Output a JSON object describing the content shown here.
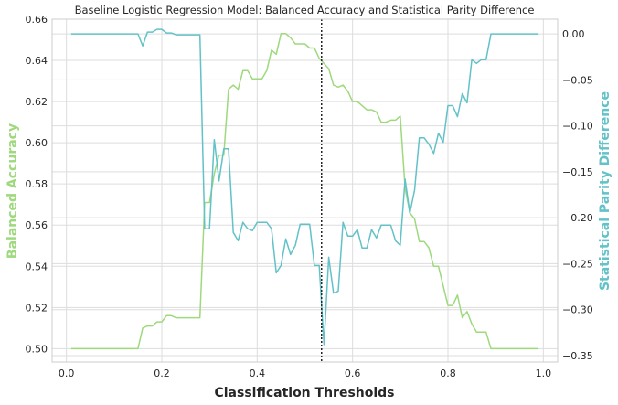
{
  "chart_data": {
    "type": "line",
    "title": "Baseline Logistic Regression Model: Balanced Accuracy and Statistical Parity Difference",
    "xlabel": "Classification Thresholds",
    "ylabel_left": "Balanced Accuracy",
    "ylabel_right": "Statistical Parity Difference",
    "xlim": [
      -0.03,
      1.03
    ],
    "ylim_left": [
      0.4935,
      0.66
    ],
    "ylim_right": [
      -0.357,
      0.016
    ],
    "xticks": [
      "0.0",
      "0.2",
      "0.4",
      "0.6",
      "0.8",
      "1.0"
    ],
    "yticks_left": [
      "0.50",
      "0.52",
      "0.54",
      "0.56",
      "0.58",
      "0.60",
      "0.62",
      "0.64",
      "0.66"
    ],
    "yticks_right": [
      "0.00",
      "−0.05",
      "−0.10",
      "−0.15",
      "−0.20",
      "−0.25",
      "−0.30",
      "−0.35"
    ],
    "grid": true,
    "colors": {
      "balanced_accuracy": "#9ed97e",
      "parity": "#62c2c8",
      "threshold": "#262626"
    },
    "vline_x": 0.535,
    "series": [
      {
        "axis": "left",
        "points": [
          [
            0.01,
            0.5
          ],
          [
            0.05,
            0.5
          ],
          [
            0.1,
            0.5
          ],
          [
            0.15,
            0.5
          ],
          [
            0.16,
            0.51
          ],
          [
            0.17,
            0.511
          ],
          [
            0.18,
            0.511
          ],
          [
            0.19,
            0.513
          ],
          [
            0.2,
            0.513
          ],
          [
            0.21,
            0.516
          ],
          [
            0.22,
            0.516
          ],
          [
            0.23,
            0.515
          ],
          [
            0.25,
            0.515
          ],
          [
            0.28,
            0.515
          ],
          [
            0.29,
            0.571
          ],
          [
            0.3,
            0.571
          ],
          [
            0.31,
            0.585
          ],
          [
            0.32,
            0.594
          ],
          [
            0.33,
            0.594
          ],
          [
            0.34,
            0.626
          ],
          [
            0.35,
            0.628
          ],
          [
            0.36,
            0.626
          ],
          [
            0.37,
            0.635
          ],
          [
            0.38,
            0.635
          ],
          [
            0.39,
            0.631
          ],
          [
            0.41,
            0.631
          ],
          [
            0.42,
            0.635
          ],
          [
            0.43,
            0.645
          ],
          [
            0.44,
            0.643
          ],
          [
            0.45,
            0.653
          ],
          [
            0.46,
            0.653
          ],
          [
            0.47,
            0.651
          ],
          [
            0.48,
            0.648
          ],
          [
            0.5,
            0.648
          ],
          [
            0.51,
            0.646
          ],
          [
            0.52,
            0.646
          ],
          [
            0.53,
            0.641
          ],
          [
            0.55,
            0.636
          ],
          [
            0.56,
            0.628
          ],
          [
            0.57,
            0.627
          ],
          [
            0.58,
            0.628
          ],
          [
            0.59,
            0.625
          ],
          [
            0.6,
            0.62
          ],
          [
            0.61,
            0.62
          ],
          [
            0.62,
            0.618
          ],
          [
            0.63,
            0.616
          ],
          [
            0.64,
            0.616
          ],
          [
            0.65,
            0.615
          ],
          [
            0.66,
            0.61
          ],
          [
            0.67,
            0.61
          ],
          [
            0.68,
            0.611
          ],
          [
            0.69,
            0.611
          ],
          [
            0.7,
            0.613
          ],
          [
            0.71,
            0.578
          ],
          [
            0.72,
            0.566
          ],
          [
            0.73,
            0.563
          ],
          [
            0.74,
            0.552
          ],
          [
            0.75,
            0.552
          ],
          [
            0.76,
            0.549
          ],
          [
            0.77,
            0.54
          ],
          [
            0.78,
            0.54
          ],
          [
            0.8,
            0.521
          ],
          [
            0.81,
            0.521
          ],
          [
            0.82,
            0.526
          ],
          [
            0.83,
            0.515
          ],
          [
            0.84,
            0.518
          ],
          [
            0.85,
            0.512
          ],
          [
            0.86,
            0.508
          ],
          [
            0.87,
            0.508
          ],
          [
            0.88,
            0.508
          ],
          [
            0.89,
            0.5
          ],
          [
            0.95,
            0.5
          ],
          [
            0.99,
            0.5
          ]
        ]
      },
      {
        "axis": "right",
        "points": [
          [
            0.01,
            0.0
          ],
          [
            0.05,
            0.0
          ],
          [
            0.1,
            0.0
          ],
          [
            0.14,
            0.0
          ],
          [
            0.15,
            0.0
          ],
          [
            0.16,
            -0.013
          ],
          [
            0.17,
            0.002
          ],
          [
            0.18,
            0.002
          ],
          [
            0.19,
            0.005
          ],
          [
            0.2,
            0.005
          ],
          [
            0.21,
            0.001
          ],
          [
            0.22,
            0.001
          ],
          [
            0.23,
            -0.001
          ],
          [
            0.25,
            -0.001
          ],
          [
            0.27,
            -0.001
          ],
          [
            0.28,
            -0.001
          ],
          [
            0.29,
            -0.212
          ],
          [
            0.3,
            -0.212
          ],
          [
            0.31,
            -0.115
          ],
          [
            0.32,
            -0.16
          ],
          [
            0.33,
            -0.125
          ],
          [
            0.34,
            -0.125
          ],
          [
            0.35,
            -0.216
          ],
          [
            0.36,
            -0.225
          ],
          [
            0.37,
            -0.205
          ],
          [
            0.38,
            -0.212
          ],
          [
            0.39,
            -0.214
          ],
          [
            0.4,
            -0.205
          ],
          [
            0.42,
            -0.205
          ],
          [
            0.43,
            -0.212
          ],
          [
            0.44,
            -0.26
          ],
          [
            0.45,
            -0.252
          ],
          [
            0.46,
            -0.223
          ],
          [
            0.47,
            -0.24
          ],
          [
            0.48,
            -0.23
          ],
          [
            0.49,
            -0.207
          ],
          [
            0.51,
            -0.207
          ],
          [
            0.52,
            -0.252
          ],
          [
            0.53,
            -0.252
          ],
          [
            0.54,
            -0.338
          ],
          [
            0.55,
            -0.243
          ],
          [
            0.56,
            -0.282
          ],
          [
            0.57,
            -0.28
          ],
          [
            0.58,
            -0.205
          ],
          [
            0.59,
            -0.22
          ],
          [
            0.6,
            -0.22
          ],
          [
            0.61,
            -0.213
          ],
          [
            0.62,
            -0.233
          ],
          [
            0.63,
            -0.233
          ],
          [
            0.64,
            -0.213
          ],
          [
            0.65,
            -0.222
          ],
          [
            0.66,
            -0.208
          ],
          [
            0.68,
            -0.208
          ],
          [
            0.69,
            -0.225
          ],
          [
            0.7,
            -0.23
          ],
          [
            0.71,
            -0.158
          ],
          [
            0.72,
            -0.195
          ],
          [
            0.73,
            -0.17
          ],
          [
            0.74,
            -0.113
          ],
          [
            0.75,
            -0.113
          ],
          [
            0.76,
            -0.12
          ],
          [
            0.77,
            -0.13
          ],
          [
            0.78,
            -0.108
          ],
          [
            0.79,
            -0.118
          ],
          [
            0.8,
            -0.078
          ],
          [
            0.81,
            -0.078
          ],
          [
            0.82,
            -0.09
          ],
          [
            0.83,
            -0.065
          ],
          [
            0.84,
            -0.075
          ],
          [
            0.85,
            -0.028
          ],
          [
            0.86,
            -0.032
          ],
          [
            0.87,
            -0.028
          ],
          [
            0.88,
            -0.028
          ],
          [
            0.89,
            0.0
          ],
          [
            0.95,
            0.0
          ],
          [
            0.99,
            0.0
          ]
        ]
      }
    ]
  }
}
